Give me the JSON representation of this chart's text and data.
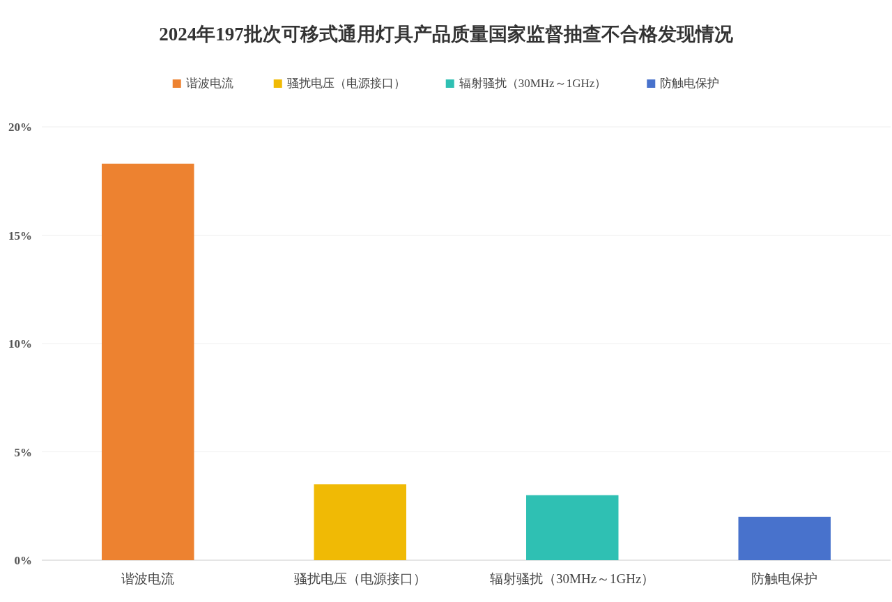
{
  "chart_data": {
    "type": "bar",
    "title": "2024年197批次可移式通用灯具产品质量国家监督抽查不合格发现情况",
    "categories": [
      "谐波电流",
      "骚扰电压（电源接口）",
      "辐射骚扰（30MHz～1GHz）",
      "防触电保护"
    ],
    "series": [
      {
        "name": "谐波电流",
        "color": "#ed8230",
        "values": [
          18.3,
          null,
          null,
          null
        ]
      },
      {
        "name": "骚扰电压（电源接口）",
        "color": "#f0ba05",
        "values": [
          null,
          3.5,
          null,
          null
        ]
      },
      {
        "name": "辐射骚扰（30MHz～1GHz）",
        "color": "#2fc0b3",
        "values": [
          null,
          null,
          3.0,
          null
        ]
      },
      {
        "name": "防触电保护",
        "color": "#4872cc",
        "values": [
          null,
          null,
          null,
          2.0
        ]
      }
    ],
    "stacked": true,
    "ylim": [
      0,
      20
    ],
    "yticks": [
      {
        "value": 0,
        "label": "0%"
      },
      {
        "value": 5,
        "label": "5%"
      },
      {
        "value": 10,
        "label": "10%"
      },
      {
        "value": 15,
        "label": "15%"
      },
      {
        "value": 20,
        "label": "20%"
      }
    ],
    "grid": "y",
    "legend": "top"
  }
}
